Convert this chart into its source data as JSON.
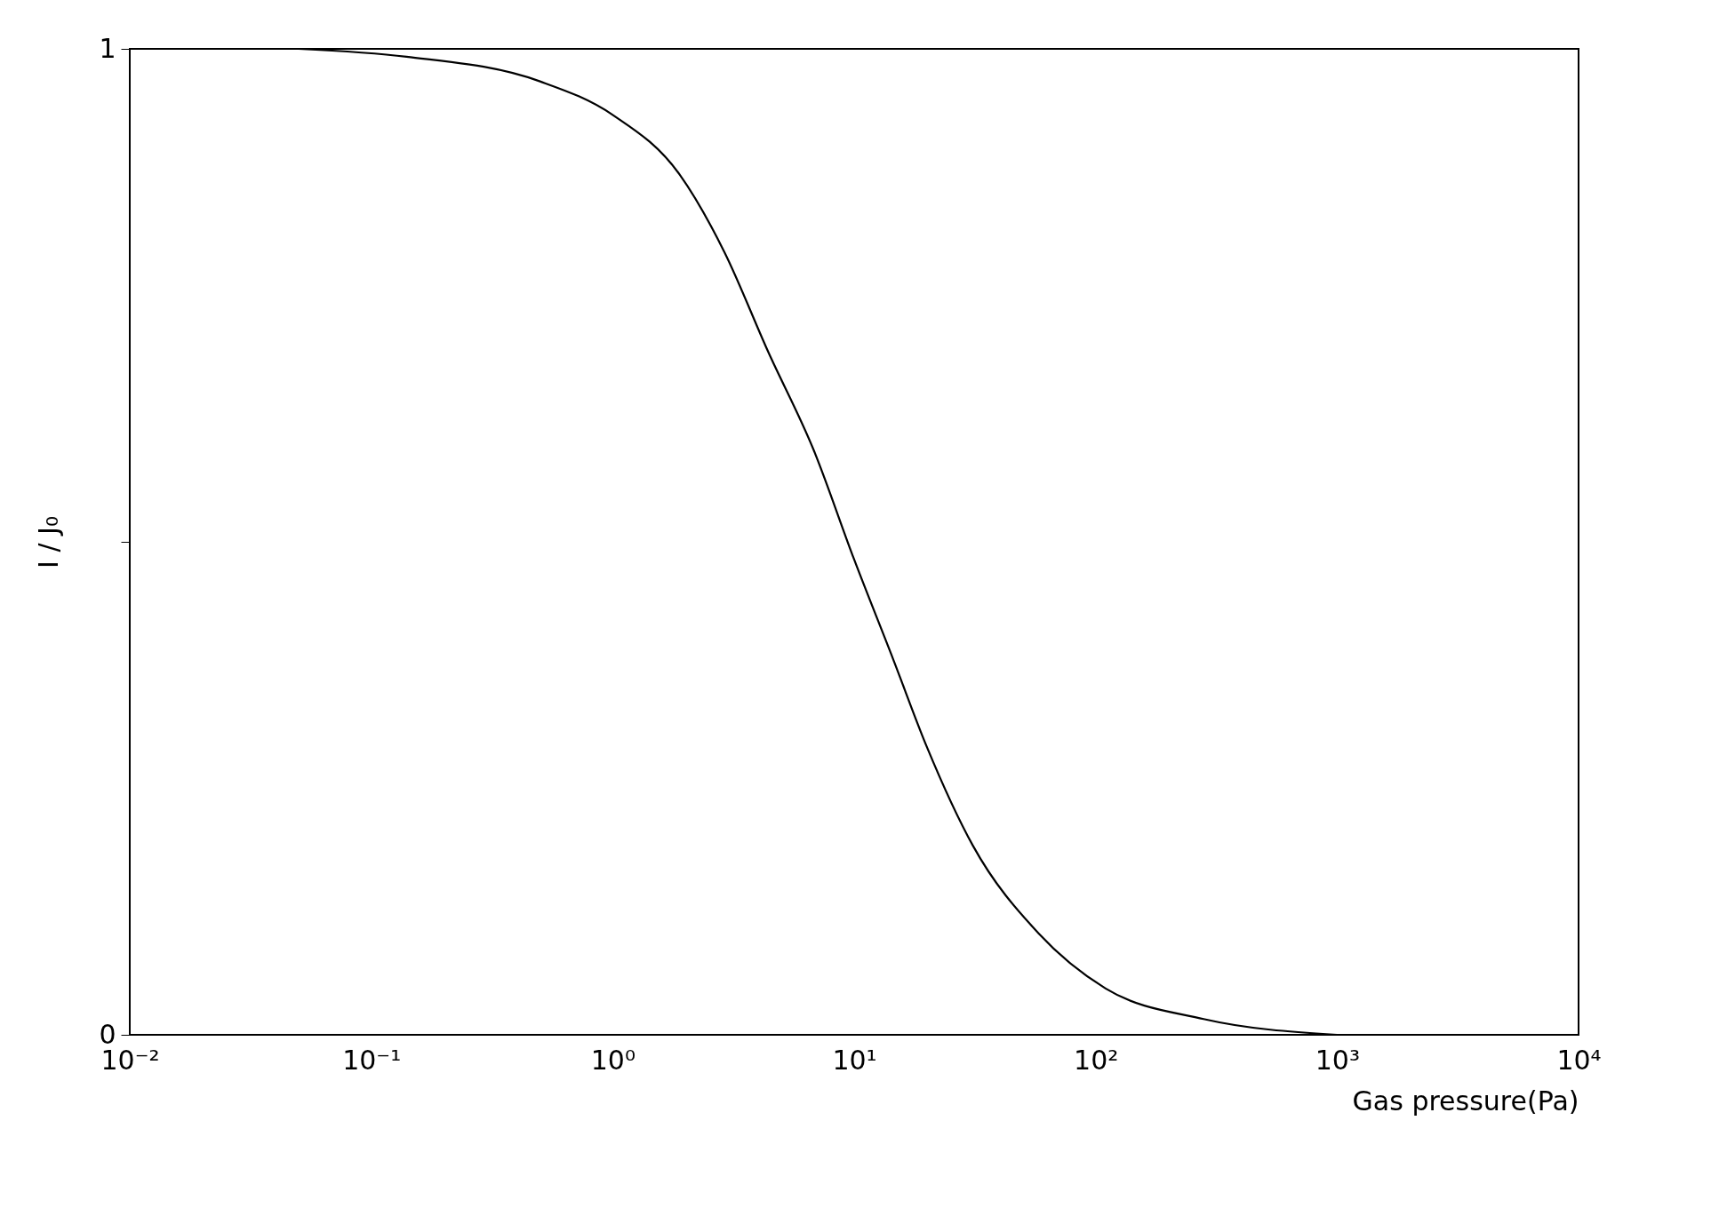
{
  "chart_data": {
    "type": "line",
    "xlabel": "Gas pressure(Pa)",
    "ylabel": "I / J₀",
    "x": [
      0.05,
      0.14,
      0.5,
      1.0,
      1.9,
      2.9,
      4.4,
      6.8,
      10,
      14.5,
      20,
      31,
      58,
      110,
      280,
      1000
    ],
    "series": [
      {
        "color": "#000000",
        "values": [
          1.0,
          0.992,
          0.967,
          0.933,
          0.872,
          0.794,
          0.693,
          0.593,
          0.482,
          0.381,
          0.292,
          0.192,
          0.103,
          0.047,
          0.016,
          0.0
        ]
      }
    ],
    "log": "x",
    "xlim": [
      0.01,
      10000
    ],
    "ylim": [
      0,
      1
    ],
    "xticks": [
      {
        "value": 0.01,
        "label": "10⁻²"
      },
      {
        "value": 0.1,
        "label": "10⁻¹"
      },
      {
        "value": 1,
        "label": "10⁰"
      },
      {
        "value": 10,
        "label": "10¹"
      },
      {
        "value": 100,
        "label": "10²"
      },
      {
        "value": 1000,
        "label": "10³"
      },
      {
        "value": 10000,
        "label": "10⁴"
      }
    ],
    "yticks": [
      0,
      {
        "value": 0.5,
        "label": null
      },
      1
    ],
    "grid": false,
    "marker": "none",
    "line_style": "solid"
  }
}
